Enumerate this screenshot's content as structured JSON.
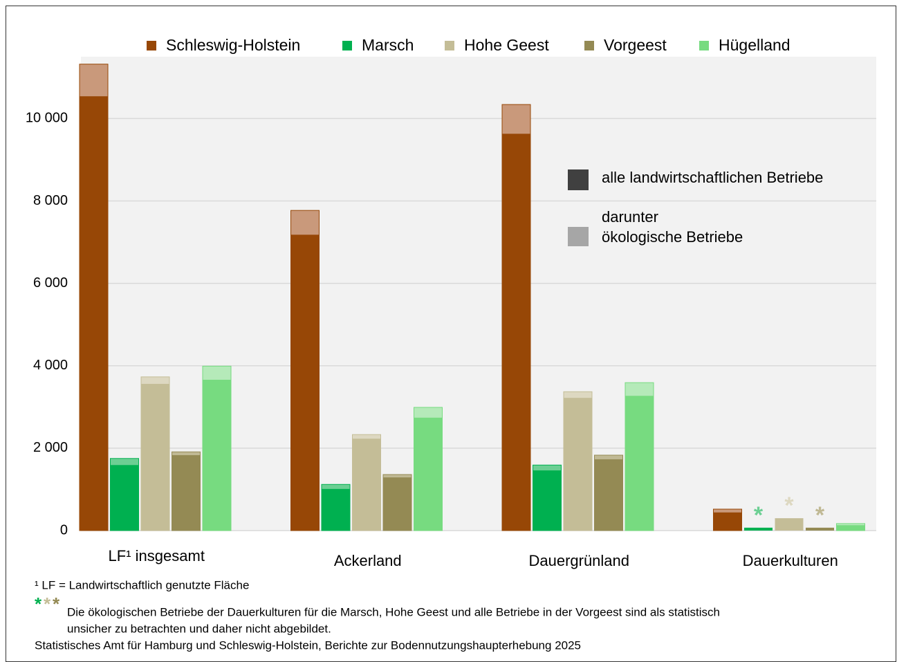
{
  "chart_data": {
    "type": "bar",
    "categories": [
      "LF¹ insgesamt",
      "Ackerland",
      "Dauergrünland",
      "Dauerkulturen"
    ],
    "series": [
      {
        "name": "Schleswig-Holstein",
        "color": "#974706",
        "eco_color": "#c9997b",
        "values": [
          10540,
          7180,
          9630,
          440
        ],
        "eco_values": [
          11320,
          7770,
          10340,
          520
        ]
      },
      {
        "name": "Marsch",
        "color": "#00b050",
        "eco_color": "#6ccf93",
        "values": [
          1590,
          1010,
          1460,
          70
        ],
        "eco_values": [
          1750,
          1120,
          1590,
          null
        ]
      },
      {
        "name": "Hohe Geest",
        "color": "#c4bd97",
        "eco_color": "#ddd8c1",
        "values": [
          3560,
          2230,
          3220,
          300
        ],
        "eco_values": [
          3730,
          2330,
          3370,
          null
        ]
      },
      {
        "name": "Vorgeest",
        "color": "#948a54",
        "eco_color": "#c0b994",
        "values": [
          1830,
          1290,
          1730,
          70
        ],
        "eco_values": [
          1910,
          1360,
          1830,
          null
        ]
      },
      {
        "name": "Hügelland",
        "color": "#77db80",
        "eco_color": "#b5eab9",
        "values": [
          3660,
          2740,
          3270,
          130
        ],
        "eco_values": [
          3990,
          2990,
          3590,
          170
        ]
      }
    ],
    "ylim": [
      0,
      11500
    ],
    "yticks": [
      0,
      {
        "value": 2000,
        "label": "2 000"
      },
      {
        "value": 4000,
        "label": "4 000"
      },
      {
        "value": 6000,
        "label": "6 000"
      },
      {
        "value": 8000,
        "label": "8 000"
      },
      {
        "value": 10000,
        "label": "10 000"
      }
    ],
    "grid": true,
    "layer_legend": {
      "all": "alle landwirtschaftlichen Betriebe",
      "all_color": "#404040",
      "eco": [
        "darunter",
        "ökologische Betriebe"
      ],
      "eco_color": "#a6a6a6"
    },
    "annotations": [
      {
        "text": "*",
        "category": 3,
        "series": 1
      },
      {
        "text": "*",
        "category": 3,
        "series": 2
      },
      {
        "text": "*",
        "category": 3,
        "series": 3
      }
    ],
    "footnotes": {
      "lf": "¹ LF = Landwirtschaftlich genutzte Fläche",
      "stars": "*",
      "stars_series": [
        1,
        2,
        3
      ],
      "uncertain": [
        "Die ökologischen Betriebe der Dauerkulturen für die Marsch, Hohe Geest und alle Betriebe in der Vorgeest sind als statistisch",
        "unsicher zu betrachten und daher nicht abgebildet."
      ],
      "source": "Statistisches Amt für Hamburg und Schleswig-Holstein,  Berichte zur Bodennutzungshaupterhebung  2025"
    }
  }
}
